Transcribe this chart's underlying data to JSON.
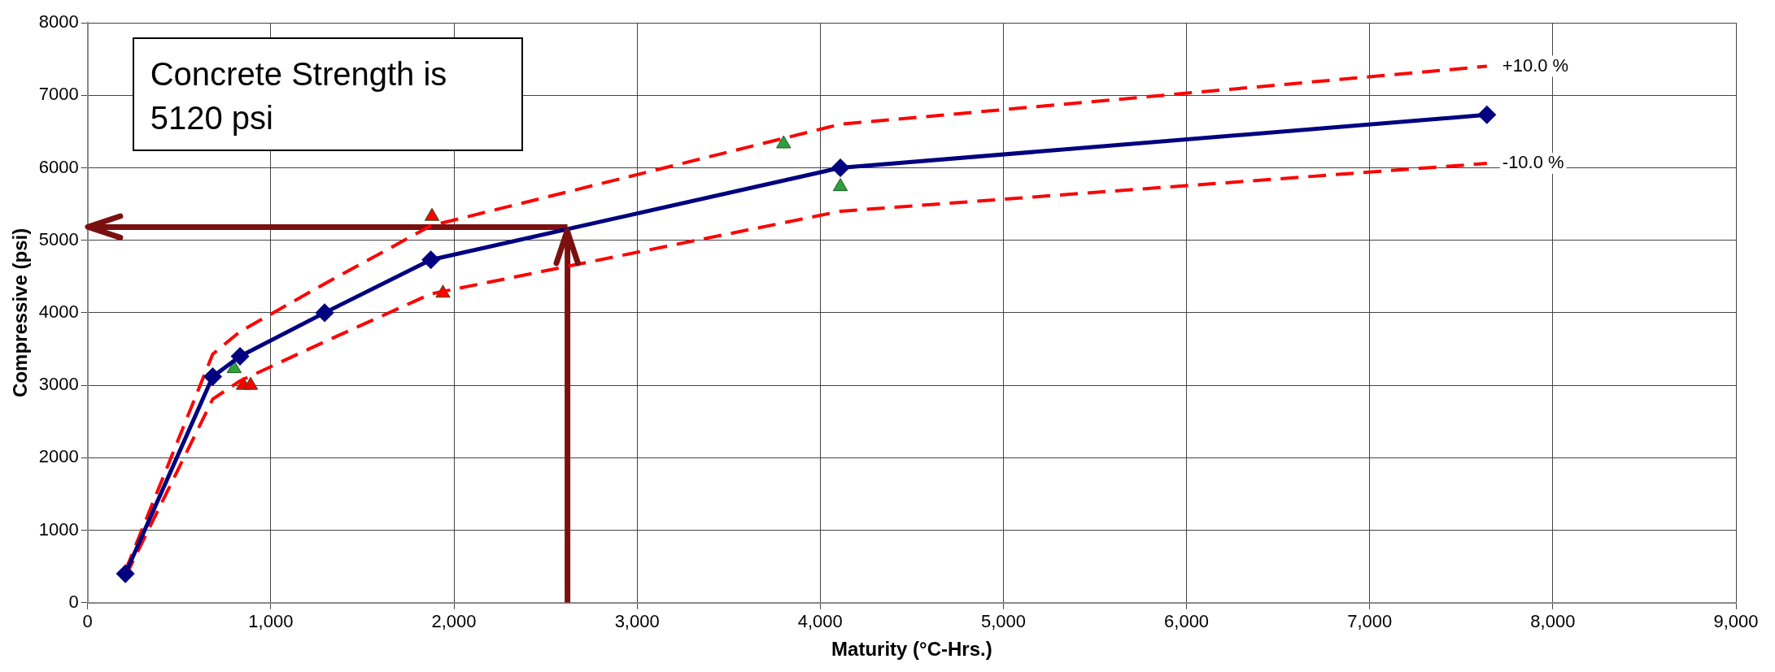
{
  "chart_data": {
    "type": "line",
    "xlabel": "Maturity (°C-Hrs.)",
    "ylabel": "Compressive (psi)",
    "annotations": [
      "Concrete Strength is 5120 psi"
    ],
    "xlim": [
      0,
      9000
    ],
    "xticks": [
      0,
      {
        "value": 1000,
        "label": "1,000"
      },
      {
        "value": 2000,
        "label": "2,000"
      },
      {
        "value": 3000,
        "label": "3,000"
      },
      {
        "value": 4000,
        "label": "4,000"
      },
      {
        "value": 5000,
        "label": "5,000"
      },
      {
        "value": 6000,
        "label": "6,000"
      },
      {
        "value": 7000,
        "label": "7,000"
      },
      {
        "value": 8000,
        "label": "8,000"
      },
      {
        "value": 9000,
        "label": "9,000"
      }
    ],
    "ylim": [
      0,
      8000
    ],
    "yticks": [
      0,
      1000,
      2000,
      3000,
      4000,
      5000,
      6000,
      7000,
      8000
    ],
    "grid": true,
    "legend": false,
    "series": [
      {
        "type": "line",
        "color": "#000080",
        "marker": "diamond",
        "line_style": "solid",
        "x": [
          206,
          683,
          832,
          1294,
          1874,
          4110,
          7640
        ],
        "values": [
          400,
          3120,
          3400,
          4000,
          4730,
          6000,
          6730
        ]
      },
      {
        "type": "line",
        "name": "+10.0 %",
        "color": "#ff0000",
        "marker": "none",
        "line_style": "dashed",
        "x": [
          206,
          683,
          832,
          1294,
          1874,
          4110,
          7640
        ],
        "values": [
          440,
          3430,
          3740,
          4400,
          5200,
          6600,
          7400
        ]
      },
      {
        "type": "line",
        "name": "-10.0 %",
        "color": "#ff0000",
        "marker": "none",
        "line_style": "dashed",
        "x": [
          206,
          683,
          832,
          1294,
          1874,
          4110,
          7640
        ],
        "values": [
          360,
          2810,
          3060,
          3600,
          4260,
          5400,
          6060
        ]
      },
      {
        "type": "scatter",
        "color": "#ff0000",
        "marker": "triangle",
        "x": [
          850,
          890,
          1880,
          1940
        ],
        "values": [
          3000,
          3000,
          5330,
          4270
        ]
      },
      {
        "type": "scatter",
        "color": "#2e9e3e",
        "marker": "triangle",
        "x": [
          800,
          3800,
          4110
        ],
        "values": [
          3230,
          6330,
          5740
        ]
      },
      {
        "type": "line",
        "color": "#7b1010",
        "marker": "none",
        "line_style": "solid",
        "x": [
          2620,
          0
        ],
        "values": [
          5180,
          5180
        ]
      },
      {
        "type": "line",
        "color": "#7b1010",
        "marker": "none",
        "line_style": "solid",
        "x": [
          2620,
          2620
        ],
        "values": [
          0,
          5130
        ]
      }
    ]
  }
}
